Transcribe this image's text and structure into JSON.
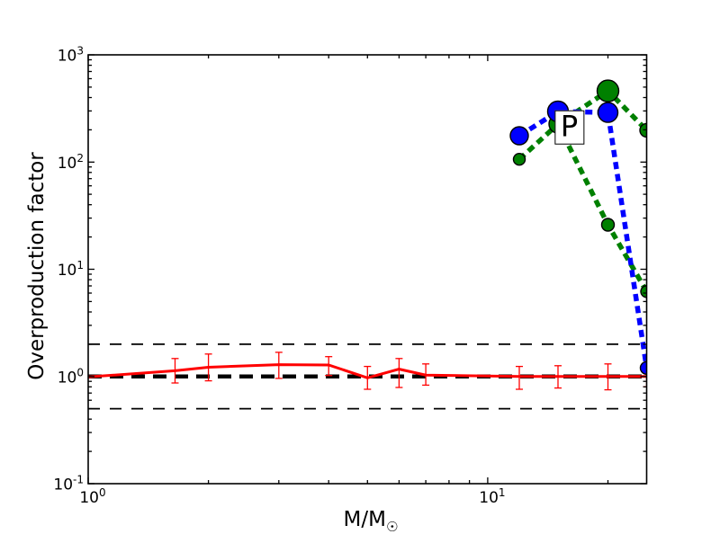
{
  "figure": {
    "background": "#ffffff"
  },
  "chart_data": {
    "type": "line",
    "title": "",
    "xlabel": "M/M☉",
    "xlabel_main": "M/M",
    "xlabel_sub": "☉",
    "ylabel": "Overproduction factor",
    "xscale": "log",
    "yscale": "log",
    "xlim": [
      1,
      25
    ],
    "ylim": [
      0.1,
      1000
    ],
    "grid": false,
    "legend": "none",
    "x_major_ticks": [
      1,
      10
    ],
    "x_major_tick_exponents": [
      0,
      1
    ],
    "x_minor_ticks": [
      2,
      3,
      4,
      5,
      6,
      7,
      8,
      9,
      20
    ],
    "y_major_tick_exponents": [
      3,
      2,
      1,
      0,
      -1
    ],
    "annotation": {
      "text": "P",
      "x": 16,
      "y": 211
    },
    "reference_lines": [
      {
        "label": "factor-2-upper",
        "y": 2,
        "color": "#000000",
        "style": "dashed-thin"
      },
      {
        "label": "factor-2-lower",
        "y": 0.5,
        "color": "#000000",
        "style": "dashed-thin"
      },
      {
        "label": "unity",
        "y": 1,
        "color": "#000000",
        "style": "dashed-thick"
      }
    ],
    "series": [
      {
        "name": "low-mass-red-solid",
        "color": "#ff0000",
        "line": "solid",
        "linewidth": 3,
        "marker": "none",
        "x": [
          1,
          1.65,
          2,
          3,
          4,
          5,
          6,
          7,
          12,
          15,
          20,
          25
        ],
        "y": [
          0.99,
          1.13,
          1.22,
          1.29,
          1.28,
          0.97,
          1.17,
          1.03,
          1.0,
          1.0,
          1.0,
          1.0
        ],
        "yerr_lo": [
          null,
          0.87,
          0.91,
          0.96,
          1.02,
          0.76,
          0.79,
          0.83,
          0.76,
          0.78,
          0.75,
          0.8
        ],
        "yerr_hi": [
          null,
          1.47,
          1.62,
          1.68,
          1.53,
          1.24,
          1.47,
          1.31,
          1.24,
          1.26,
          1.31,
          1.25
        ]
      },
      {
        "name": "massive-green-dashed-high",
        "color": "#008000",
        "line": "dashed",
        "linewidth": 5.5,
        "marker": "circle",
        "x": [
          12,
          15,
          20,
          25
        ],
        "y": [
          106,
          226,
          461,
          198
        ],
        "marker_radius": [
          6.5,
          10,
          12,
          7.5
        ]
      },
      {
        "name": "massive-green-dashed-low",
        "color": "#008000",
        "line": "dashed",
        "linewidth": 5.5,
        "marker": "circle",
        "x": [
          15,
          20,
          25
        ],
        "y": [
          226,
          26,
          6.2
        ],
        "marker_radius": [
          0,
          7,
          6.5
        ]
      },
      {
        "name": "massive-blue-dashed",
        "color": "#0000ff",
        "line": "dashed",
        "linewidth": 5.5,
        "marker": "circle",
        "x": [
          12,
          15,
          20,
          25
        ],
        "y": [
          176,
          296,
          290,
          1.2
        ],
        "marker_radius": [
          10,
          11.5,
          11,
          7
        ]
      }
    ]
  }
}
